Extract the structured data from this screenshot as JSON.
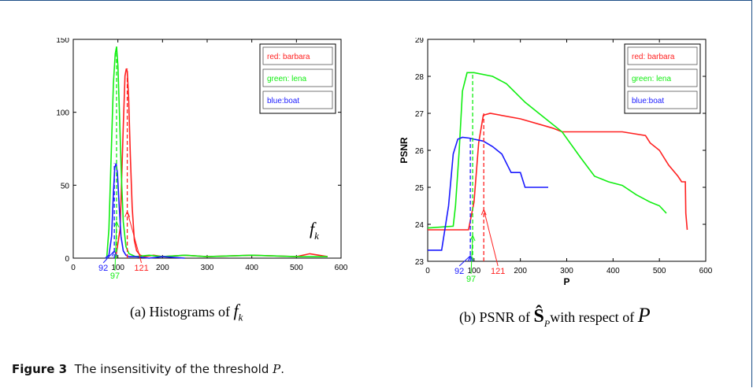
{
  "figure": {
    "label": "Figure 3",
    "text_before": "The insensitivity of the threshold",
    "math_var": "P",
    "text_after": "."
  },
  "colors": {
    "red": "#ff2020",
    "green": "#11ee11",
    "blue": "#1a1aff",
    "axis": "#000000"
  },
  "panels": [
    {
      "caption_prefix": "(a) Histograms of",
      "caption_math": "f",
      "caption_math_sub": "k",
      "inline_label": "f",
      "inline_label_sub": "k"
    },
    {
      "caption_prefix": "(b) PSNR of",
      "caption_math": "Ŝ",
      "caption_math_sub": "P",
      "caption_suffix": "with respect of",
      "caption_math2": "P"
    }
  ],
  "chart_data": [
    {
      "type": "line",
      "title": "",
      "xlabel": "",
      "ylabel": "",
      "xlim": [
        0,
        600
      ],
      "ylim": [
        0,
        150
      ],
      "xticks": [
        0,
        100,
        200,
        300,
        400,
        500,
        600
      ],
      "yticks": [
        0,
        50,
        100,
        150
      ],
      "legend": [
        "red: barbara",
        "green: lena",
        "blue:boat"
      ],
      "legend_position": "top-right",
      "grid": false,
      "series": [
        {
          "name": "red: barbara",
          "color": "red",
          "x": [
            95,
            105,
            112,
            116,
            119,
            121,
            124,
            128,
            132,
            137,
            142,
            150,
            160,
            180,
            200,
            250,
            300,
            400,
            500,
            530,
            570
          ],
          "y": [
            0,
            20,
            90,
            125,
            130,
            128,
            110,
            70,
            35,
            12,
            5,
            2,
            1,
            2,
            1,
            2,
            1,
            2,
            1,
            3,
            1
          ]
        },
        {
          "name": "green: lena",
          "color": "green",
          "x": [
            75,
            80,
            86,
            90,
            94,
            97,
            100,
            104,
            108,
            112,
            118,
            125,
            140,
            170,
            200,
            250,
            300,
            400,
            500,
            570
          ],
          "y": [
            0,
            20,
            80,
            120,
            140,
            145,
            132,
            95,
            55,
            25,
            8,
            3,
            1,
            2,
            1,
            2,
            1,
            2,
            1,
            1
          ]
        },
        {
          "name": "blue:boat",
          "color": "blue",
          "x": [
            72,
            80,
            86,
            90,
            93,
            96,
            99,
            103,
            107,
            112,
            118,
            125,
            140,
            170,
            200,
            250
          ],
          "y": [
            0,
            2,
            15,
            45,
            62,
            65,
            58,
            35,
            15,
            5,
            2,
            1,
            1,
            0,
            1,
            0
          ]
        }
      ],
      "threshold_markers": [
        {
          "color": "red",
          "x": 121,
          "label": "121",
          "arrow_y": 32
        },
        {
          "color": "green",
          "x": 97,
          "label": "97",
          "arrow_y": 25
        },
        {
          "color": "blue",
          "x": 92,
          "label": "92",
          "arrow_y": 5
        }
      ]
    },
    {
      "type": "line",
      "title": "",
      "xlabel": "P",
      "ylabel": "PSNR",
      "xlim": [
        0,
        600
      ],
      "ylim": [
        23,
        29
      ],
      "xticks": [
        0,
        100,
        200,
        300,
        400,
        500,
        600
      ],
      "yticks": [
        23,
        24,
        25,
        26,
        27,
        28,
        29
      ],
      "legend": [
        "red: barbara",
        "green: lena",
        "blue:boat"
      ],
      "legend_position": "top-right",
      "grid": false,
      "series": [
        {
          "name": "red: barbara",
          "color": "red",
          "x": [
            0,
            88,
            100,
            110,
            120,
            135,
            200,
            270,
            290,
            340,
            420,
            470,
            480,
            500,
            520,
            540,
            548,
            556,
            557,
            560
          ],
          "y": [
            23.85,
            23.85,
            24.6,
            26.2,
            26.95,
            27.0,
            26.85,
            26.6,
            26.5,
            26.5,
            26.5,
            26.4,
            26.2,
            26.0,
            25.6,
            25.3,
            25.15,
            25.15,
            24.3,
            23.85
          ]
        },
        {
          "name": "green: lena",
          "color": "green",
          "x": [
            0,
            55,
            60,
            68,
            75,
            85,
            100,
            140,
            170,
            210,
            250,
            290,
            330,
            360,
            390,
            420,
            450,
            480,
            500,
            515
          ],
          "y": [
            23.9,
            23.95,
            24.5,
            26.0,
            27.6,
            28.1,
            28.1,
            28.0,
            27.8,
            27.3,
            26.9,
            26.5,
            25.8,
            25.3,
            25.15,
            25.05,
            24.8,
            24.6,
            24.5,
            24.3
          ]
        },
        {
          "name": "blue:boat",
          "color": "blue",
          "x": [
            0,
            30,
            45,
            55,
            65,
            75,
            90,
            100,
            120,
            140,
            160,
            180,
            200,
            210,
            230,
            260
          ],
          "y": [
            23.3,
            23.3,
            24.5,
            25.9,
            26.3,
            26.35,
            26.33,
            26.3,
            26.25,
            26.1,
            25.9,
            25.4,
            25.4,
            25.0,
            25.0,
            25.0
          ]
        }
      ],
      "threshold_markers": [
        {
          "color": "red",
          "x": 121,
          "label": "121",
          "arrow_y": 24.4
        },
        {
          "color": "green",
          "x": 97,
          "label": "97",
          "arrow_y": 23.7
        },
        {
          "color": "blue",
          "x": 92,
          "label": "92",
          "arrow_y": 23.15
        }
      ]
    }
  ]
}
